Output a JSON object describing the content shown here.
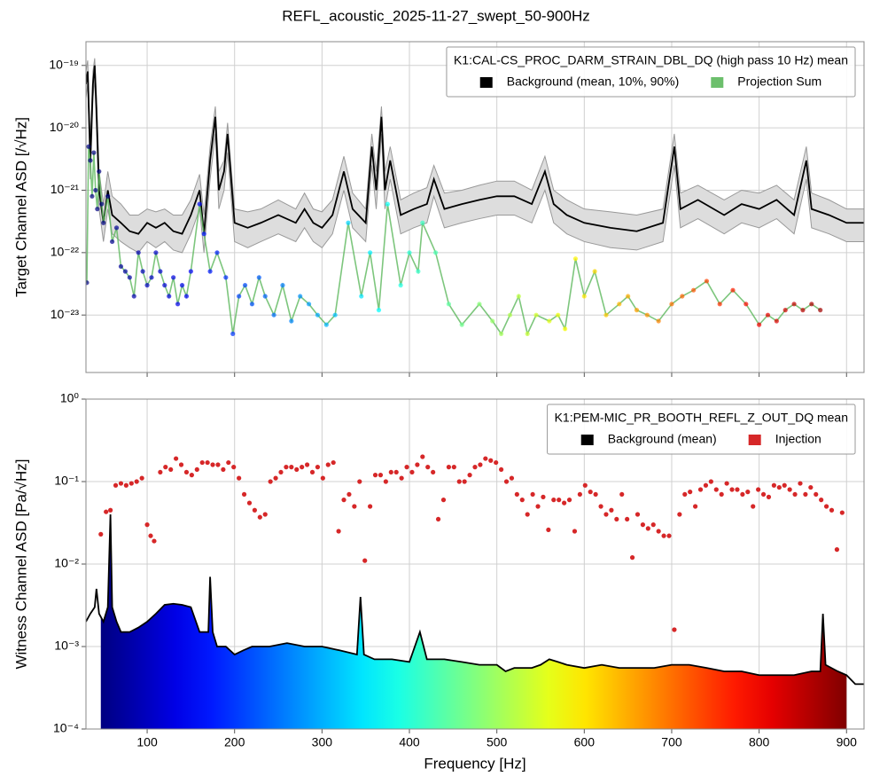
{
  "title": "REFL_acoustic_2025-11-27_swept_50-900Hz",
  "chart_data": [
    {
      "type": "line",
      "ylabel": "Target Channel ASD [/√Hz]",
      "log_y": true,
      "grid": true,
      "sharex": true,
      "legend": "upper right",
      "legend_title": "K1:CAL-CS_PROC_DARM_STRAIN_DBL_DQ (high pass 10 Hz) mean",
      "xlim": [
        30,
        920
      ],
      "ylim": [
        1.2e-24,
        2.4e-19
      ],
      "yticks": [
        {
          "value": 1e-19,
          "label": "10⁻¹⁹"
        },
        {
          "value": 1e-20,
          "label": "10⁻²⁰"
        },
        {
          "value": 1e-21,
          "label": "10⁻²¹"
        },
        {
          "value": 1e-22,
          "label": "10⁻²²"
        },
        {
          "value": 1e-23,
          "label": "10⁻²³"
        }
      ],
      "clim": [
        47,
        900
      ],
      "colormap": "jet",
      "series": [
        {
          "name": "Background (mean, 10%, 90%)",
          "type": "line",
          "color": "#000000",
          "band_color": "#dddddd",
          "x": [
            30,
            32,
            35,
            38,
            40,
            42,
            45,
            50,
            55,
            60,
            70,
            80,
            90,
            100,
            110,
            120,
            130,
            140,
            150,
            160,
            165,
            172,
            178,
            182,
            188,
            192,
            200,
            215,
            230,
            250,
            270,
            280,
            290,
            300,
            312,
            325,
            335,
            350,
            357,
            362,
            368,
            372,
            378,
            390,
            405,
            420,
            428,
            440,
            460,
            480,
            500,
            520,
            540,
            555,
            565,
            580,
            600,
            630,
            660,
            690,
            703,
            710,
            730,
            760,
            780,
            800,
            820,
            840,
            854,
            860,
            880,
            900,
            920
          ],
          "values": [
            5e-20,
            8e-20,
            3e-21,
            5e-20,
            1e-19,
            2e-20,
            1e-21,
            3e-22,
            1e-21,
            4e-22,
            3e-22,
            2.2e-22,
            2e-22,
            3e-22,
            2.5e-22,
            3e-22,
            2.2e-22,
            2e-22,
            4e-22,
            1e-21,
            2e-22,
            3e-21,
            1.5e-20,
            1e-21,
            2e-21,
            8e-21,
            3e-22,
            2.5e-22,
            3e-22,
            4e-22,
            3e-22,
            5e-22,
            3e-22,
            2.5e-22,
            4e-22,
            2e-21,
            5e-22,
            3e-22,
            5e-21,
            1e-21,
            1.5e-20,
            1e-21,
            3e-21,
            4e-22,
            5e-22,
            6e-22,
            1.5e-21,
            5e-22,
            6e-22,
            7e-22,
            8e-22,
            8e-22,
            6e-22,
            2e-21,
            6e-22,
            4e-22,
            3e-22,
            2.5e-22,
            2.2e-22,
            3e-22,
            5e-21,
            5e-22,
            7e-22,
            4e-22,
            6e-22,
            5e-22,
            7e-22,
            4e-22,
            3e-21,
            5e-22,
            4e-22,
            3e-22,
            3e-22
          ],
          "lower": [
            3e-20,
            5e-20,
            1.5e-21,
            3e-20,
            6e-20,
            1e-20,
            5e-22,
            1.5e-22,
            5e-22,
            2e-22,
            1.5e-22,
            1.2e-22,
            1e-22,
            1.5e-22,
            1.2e-22,
            1.5e-22,
            1.1e-22,
            1e-22,
            2e-22,
            5e-22,
            1e-22,
            1.5e-21,
            8e-21,
            5e-22,
            1e-21,
            4e-21,
            1.5e-22,
            1.2e-22,
            1.5e-22,
            2e-22,
            1.5e-22,
            2.5e-22,
            1.5e-22,
            1.2e-22,
            2e-22,
            1e-21,
            2.5e-22,
            1.5e-22,
            2.5e-21,
            5e-22,
            8e-21,
            5e-22,
            1.5e-21,
            2e-22,
            2.5e-22,
            3e-22,
            8e-22,
            2.5e-22,
            3e-22,
            3.5e-22,
            4e-22,
            4e-22,
            3e-22,
            1e-21,
            3e-22,
            2e-22,
            1.5e-22,
            1.2e-22,
            1.1e-22,
            1.5e-22,
            2.5e-21,
            2.5e-22,
            3.5e-22,
            2e-22,
            3e-22,
            2.5e-22,
            3.5e-22,
            2e-22,
            1.5e-21,
            2.5e-22,
            2e-22,
            1.5e-22,
            1.5e-22
          ],
          "upper": [
            8e-20,
            1.2e-19,
            6e-21,
            8e-20,
            1.3e-19,
            3e-20,
            2e-21,
            6e-22,
            2e-21,
            8e-22,
            6e-22,
            4e-22,
            4e-22,
            5e-22,
            4.5e-22,
            5e-22,
            4e-22,
            4e-22,
            7e-22,
            1.8e-21,
            4e-22,
            5e-21,
            2.2e-20,
            2e-21,
            3e-21,
            1.2e-20,
            5e-22,
            4.5e-22,
            5e-22,
            7e-22,
            5e-22,
            9e-22,
            5e-22,
            4.5e-22,
            7e-22,
            3.5e-21,
            9e-22,
            5e-22,
            8e-21,
            2e-21,
            2.2e-20,
            2e-21,
            5e-21,
            7e-22,
            9e-22,
            1.1e-21,
            2.5e-21,
            9e-22,
            1e-21,
            1.2e-21,
            1.4e-21,
            1.4e-21,
            1e-21,
            3.5e-21,
            1e-21,
            7e-22,
            5e-22,
            4.5e-22,
            4e-22,
            5e-22,
            8e-21,
            9e-22,
            1.2e-21,
            7e-22,
            1e-21,
            9e-22,
            1.2e-21,
            7e-22,
            5e-21,
            9e-22,
            7e-22,
            5e-22,
            5e-22
          ]
        },
        {
          "name": "Projection Sum",
          "type": "line",
          "color": "#5cb85c",
          "marker_colormap": "jet",
          "x": [
            31,
            33,
            35,
            37,
            39,
            41,
            43,
            45,
            48,
            50,
            55,
            60,
            65,
            70,
            75,
            80,
            85,
            90,
            95,
            100,
            105,
            110,
            115,
            120,
            125,
            130,
            135,
            140,
            145,
            150,
            160,
            165,
            172,
            180,
            190,
            198,
            205,
            212,
            220,
            228,
            235,
            245,
            255,
            265,
            275,
            285,
            295,
            305,
            315,
            330,
            345,
            355,
            365,
            375,
            390,
            400,
            410,
            415,
            430,
            445,
            460,
            480,
            495,
            505,
            515,
            525,
            535,
            545,
            560,
            570,
            578,
            590,
            600,
            612,
            625,
            640,
            650,
            660,
            672,
            685,
            700,
            712,
            725,
            740,
            755,
            770,
            785,
            800,
            810,
            820,
            830,
            840,
            850,
            860,
            870
          ],
          "values": [
            3.3e-23,
            5e-21,
            3e-21,
            8e-22,
            4e-21,
            1e-21,
            5e-22,
            2e-21,
            6e-22,
            3e-22,
            8e-22,
            1.5e-22,
            2.5e-22,
            6e-23,
            5e-23,
            4e-23,
            2e-23,
            1e-22,
            5e-23,
            3e-23,
            4e-23,
            1e-22,
            5e-23,
            3e-23,
            2e-23,
            4e-23,
            1.5e-23,
            3e-23,
            2e-23,
            5e-23,
            6e-22,
            2e-22,
            5e-23,
            1e-22,
            4e-23,
            5e-24,
            2e-23,
            3e-23,
            1.5e-23,
            4e-23,
            2e-23,
            1e-23,
            3e-23,
            8e-24,
            2e-23,
            1.5e-23,
            1e-23,
            7e-24,
            1e-23,
            3e-22,
            2e-23,
            1e-22,
            1.2e-23,
            6e-22,
            3e-23,
            1e-22,
            5e-23,
            3e-22,
            1e-22,
            1.5e-23,
            7e-24,
            1.5e-23,
            8e-24,
            5e-24,
            1e-23,
            2e-23,
            5e-24,
            1e-23,
            8e-24,
            1e-23,
            6e-24,
            8e-23,
            2e-23,
            5e-23,
            1e-23,
            1.5e-23,
            2e-23,
            1.2e-23,
            1e-23,
            8e-24,
            1.5e-23,
            2e-23,
            2.5e-23,
            3.5e-23,
            1.5e-23,
            2.5e-23,
            1.5e-23,
            7e-24,
            1e-23,
            8e-24,
            1.2e-23,
            1.5e-23,
            1.2e-23,
            1.5e-23,
            1.2e-23
          ]
        }
      ]
    },
    {
      "type": "line",
      "xlabel": "Frequency [Hz]",
      "ylabel": "Witness Channel ASD [Pa/√Hz]",
      "log_y": true,
      "grid": true,
      "legend": "upper right",
      "legend_title": "K1:PEM-MIC_PR_BOOTH_REFL_Z_OUT_DQ mean",
      "xlim": [
        30,
        920
      ],
      "xticks": [
        100,
        200,
        300,
        400,
        500,
        600,
        700,
        800,
        900
      ],
      "ylim": [
        0.0001,
        1
      ],
      "yticks": [
        {
          "value": 1,
          "label": "10⁰"
        },
        {
          "value": 0.1,
          "label": "10⁻¹"
        },
        {
          "value": 0.01,
          "label": "10⁻²"
        },
        {
          "value": 0.001,
          "label": "10⁻³"
        },
        {
          "value": 0.0001,
          "label": "10⁻⁴"
        }
      ],
      "fill_xlim": [
        47,
        900
      ],
      "colormap": "jet",
      "series": [
        {
          "name": "Background (mean)",
          "type": "line",
          "color": "#000000",
          "x": [
            30,
            35,
            40,
            42,
            45,
            50,
            55,
            58,
            60,
            65,
            70,
            80,
            90,
            100,
            110,
            120,
            130,
            140,
            150,
            160,
            170,
            172,
            175,
            180,
            190,
            200,
            210,
            220,
            240,
            260,
            280,
            300,
            320,
            340,
            344,
            348,
            360,
            380,
            400,
            412,
            420,
            440,
            460,
            480,
            500,
            510,
            520,
            540,
            550,
            560,
            570,
            580,
            600,
            620,
            640,
            660,
            680,
            700,
            720,
            740,
            760,
            780,
            800,
            820,
            840,
            860,
            870,
            873,
            876,
            890,
            900,
            910,
            920
          ],
          "values": [
            0.002,
            0.0025,
            0.003,
            0.005,
            0.0025,
            0.002,
            0.003,
            0.04,
            0.003,
            0.002,
            0.0015,
            0.0015,
            0.0017,
            0.002,
            0.0025,
            0.0032,
            0.0033,
            0.0032,
            0.003,
            0.0015,
            0.0015,
            0.007,
            0.0015,
            0.001,
            0.001,
            0.0008,
            0.0009,
            0.001,
            0.001,
            0.0011,
            0.001,
            0.001,
            0.0009,
            0.0008,
            0.004,
            0.0008,
            0.0007,
            0.0007,
            0.00065,
            0.0015,
            0.0007,
            0.0007,
            0.00065,
            0.0006,
            0.0006,
            0.0005,
            0.00055,
            0.00055,
            0.0006,
            0.0007,
            0.00065,
            0.0006,
            0.00055,
            0.0006,
            0.00055,
            0.00055,
            0.00055,
            0.0006,
            0.0006,
            0.00055,
            0.0005,
            0.0005,
            0.00045,
            0.00045,
            0.00045,
            0.0005,
            0.0005,
            0.0025,
            0.0006,
            0.0005,
            0.00045,
            0.00035,
            0.00035
          ]
        },
        {
          "name": "Injection",
          "type": "scatter",
          "color": "#d62728",
          "x": [
            47,
            53,
            58,
            64,
            70,
            76,
            82,
            88,
            94,
            100,
            104,
            108,
            115,
            121,
            127,
            133,
            139,
            145,
            151,
            157,
            163,
            169,
            175,
            181,
            187,
            193,
            199,
            205,
            211,
            217,
            223,
            229,
            235,
            241,
            247,
            253,
            259,
            265,
            271,
            277,
            283,
            289,
            295,
            301,
            307,
            313,
            319,
            325,
            331,
            337,
            343,
            349,
            355,
            361,
            367,
            373,
            379,
            385,
            391,
            397,
            403,
            409,
            415,
            421,
            427,
            433,
            439,
            445,
            451,
            457,
            463,
            469,
            475,
            481,
            487,
            493,
            499,
            505,
            511,
            517,
            523,
            529,
            535,
            541,
            547,
            553,
            559,
            565,
            571,
            577,
            583,
            589,
            595,
            601,
            607,
            613,
            619,
            625,
            631,
            637,
            643,
            649,
            655,
            661,
            667,
            673,
            679,
            685,
            691,
            697,
            703,
            709,
            715,
            721,
            727,
            733,
            739,
            745,
            751,
            757,
            763,
            769,
            775,
            781,
            787,
            793,
            799,
            805,
            811,
            817,
            823,
            829,
            835,
            841,
            847,
            853,
            859,
            865,
            871,
            877,
            883,
            889,
            895
          ],
          "values": [
            0.023,
            0.043,
            0.045,
            0.09,
            0.095,
            0.09,
            0.095,
            0.1,
            0.11,
            0.03,
            0.022,
            0.019,
            0.13,
            0.15,
            0.14,
            0.19,
            0.16,
            0.13,
            0.12,
            0.14,
            0.17,
            0.17,
            0.16,
            0.16,
            0.14,
            0.17,
            0.15,
            0.11,
            0.07,
            0.055,
            0.045,
            0.037,
            0.04,
            0.1,
            0.11,
            0.13,
            0.15,
            0.15,
            0.14,
            0.15,
            0.16,
            0.13,
            0.15,
            0.11,
            0.16,
            0.17,
            0.025,
            0.06,
            0.07,
            0.05,
            0.1,
            0.011,
            0.05,
            0.12,
            0.12,
            0.1,
            0.13,
            0.13,
            0.11,
            0.15,
            0.13,
            0.16,
            0.2,
            0.15,
            0.13,
            0.035,
            0.06,
            0.15,
            0.15,
            0.1,
            0.1,
            0.12,
            0.15,
            0.16,
            0.19,
            0.18,
            0.17,
            0.14,
            0.1,
            0.11,
            0.07,
            0.06,
            0.04,
            0.07,
            0.05,
            0.065,
            0.026,
            0.06,
            0.06,
            0.055,
            0.06,
            0.025,
            0.07,
            0.09,
            0.075,
            0.07,
            0.05,
            0.04,
            0.045,
            0.035,
            0.07,
            0.035,
            0.012,
            0.04,
            0.03,
            0.027,
            0.03,
            0.025,
            0.022,
            0.022,
            0.0016,
            0.04,
            0.07,
            0.075,
            0.05,
            0.08,
            0.09,
            0.1,
            0.08,
            0.07,
            0.095,
            0.08,
            0.08,
            0.07,
            0.075,
            0.05,
            0.08,
            0.07,
            0.065,
            0.09,
            0.085,
            0.09,
            0.08,
            0.07,
            0.095,
            0.07,
            0.085,
            0.07,
            0.06,
            0.05,
            0.045,
            0.015,
            0.042
          ]
        }
      ]
    }
  ]
}
